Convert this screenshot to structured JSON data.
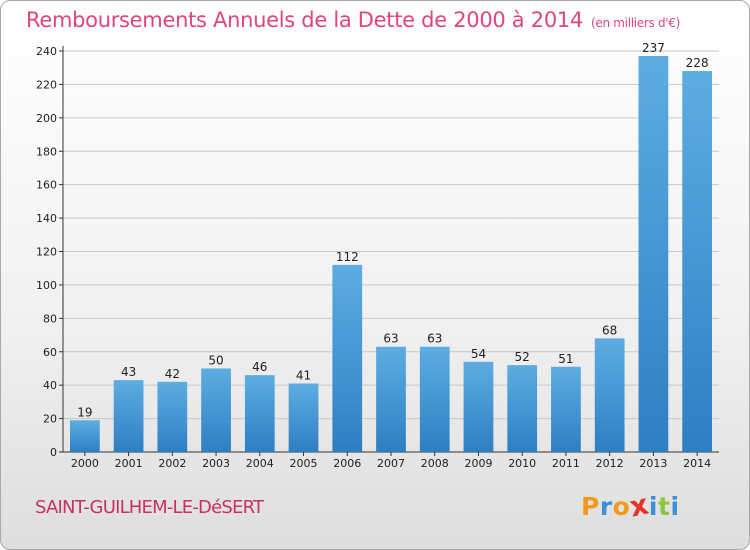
{
  "title": "Remboursements Annuels de la Dette de 2000 à 2014",
  "unit": "(en milliers d'€)",
  "commune": "SAINT-GUILHEM-LE-DéSERT",
  "logo": {
    "letters": [
      "P",
      "r",
      "o",
      "x",
      "i",
      "t",
      "i"
    ],
    "colors": [
      "#f39a1c",
      "#3c8fd8",
      "#f39a1c",
      "#e5332a",
      "#3c8fd8",
      "#8cc63f",
      "#3c8fd8"
    ]
  },
  "colors": {
    "bar_light": "#5dade2",
    "bar_dark": "#2d7fc3",
    "grid": "#c8c8c8",
    "title": "#e0457b"
  },
  "chart_data": {
    "type": "bar",
    "title": "Remboursements Annuels de la Dette de 2000 à 2014",
    "subtitle": "(en milliers d'€)",
    "categories": [
      "2000",
      "2001",
      "2002",
      "2003",
      "2004",
      "2005",
      "2006",
      "2007",
      "2008",
      "2009",
      "2010",
      "2011",
      "2012",
      "2013",
      "2014"
    ],
    "values": [
      19,
      43,
      42,
      50,
      46,
      41,
      112,
      63,
      63,
      54,
      52,
      51,
      68,
      237,
      228
    ],
    "ylim": [
      0,
      240
    ],
    "yticks": [
      0,
      20,
      40,
      60,
      80,
      100,
      120,
      140,
      160,
      180,
      200,
      220,
      240
    ],
    "grid": true,
    "xlabel": "",
    "ylabel": ""
  }
}
